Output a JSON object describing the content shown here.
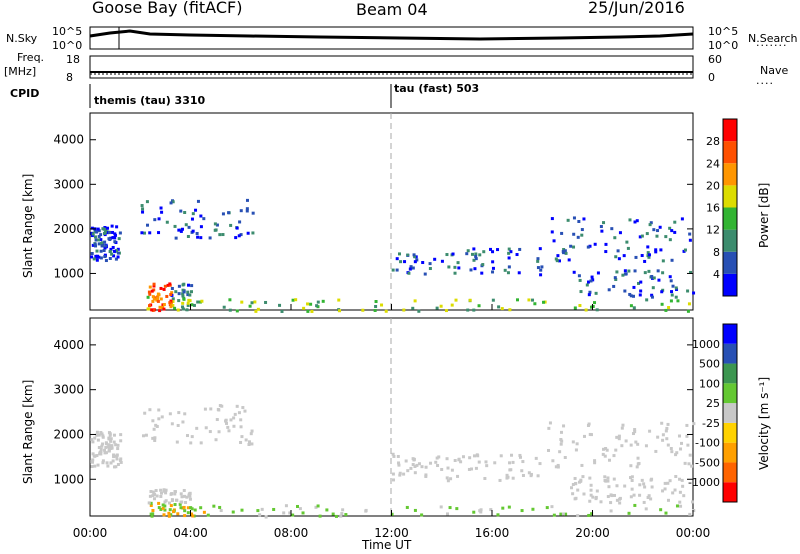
{
  "header": {
    "site": "Goose Bay (fitACF)",
    "beam": "Beam 04",
    "date": "25/Jun/2016"
  },
  "panels": {
    "nsky_label": "N.Sky",
    "nsky_ticks": [
      "10^5",
      "10^0"
    ],
    "nsearch_label": "N.Search",
    "nsearch_ticks": [
      "10^5",
      "10^0"
    ],
    "freq_label_1": "Freq.",
    "freq_label_2": "[MHz]",
    "freq_ticks": [
      "18",
      "8"
    ],
    "nave_label": "Nave",
    "nave_ticks": [
      "60",
      "0"
    ],
    "cpid_label": "CPID",
    "cpid_segments": [
      {
        "text": "themis (tau) 3310",
        "start_hour": 0
      },
      {
        "text": "tau (fast) 503",
        "start_hour": 12
      }
    ]
  },
  "chart_data": [
    {
      "type": "heatmap",
      "name": "power",
      "ylabel": "Slant Range [km]",
      "ylim": [
        180,
        4600
      ],
      "yticks": [
        1000,
        2000,
        3000,
        4000
      ],
      "xlim": [
        0,
        24
      ],
      "colorbar_label": "Power [dB]",
      "colorbar_ticks": [
        "4",
        "8",
        "12",
        "16",
        "20",
        "24",
        "28"
      ],
      "colors": [
        "#0000ff",
        "#2850b4",
        "#3c8c6e",
        "#32b432",
        "#dcdc00",
        "#ff9600",
        "#ff5000",
        "#ff0000"
      ]
    },
    {
      "type": "heatmap",
      "name": "velocity",
      "ylabel": "Slant Range [km]",
      "ylim": [
        180,
        4600
      ],
      "yticks": [
        1000,
        2000,
        3000,
        4000
      ],
      "xlim": [
        0,
        24
      ],
      "xlabel": "Time UT",
      "xticks": [
        "00:00",
        "04:00",
        "08:00",
        "12:00",
        "16:00",
        "20:00",
        "00:00"
      ],
      "colorbar_label": "Velocity [m s⁻¹]",
      "colorbar_ticks": [
        "-1000",
        "-500",
        "-100",
        "-25",
        "25",
        "100",
        "500",
        "1000"
      ],
      "colors": [
        "#ff0000",
        "#ff6400",
        "#ffa000",
        "#ffd200",
        "#c8c8c8",
        "#64c832",
        "#3c9650",
        "#2850b4",
        "#0000ff"
      ]
    }
  ]
}
